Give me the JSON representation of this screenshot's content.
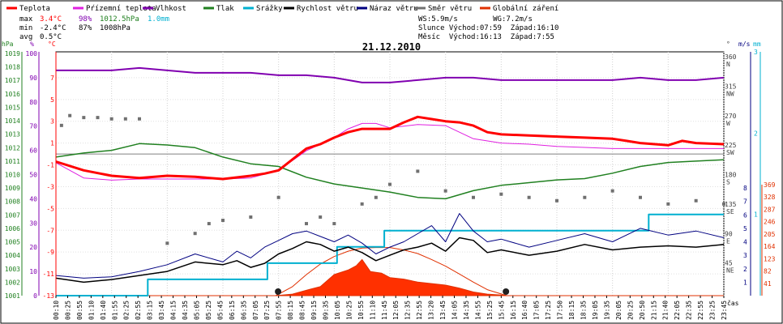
{
  "chart_data": {
    "type": "line",
    "title": "21.12.2010",
    "xlabel": "čas",
    "x_ticks": [
      "00:10",
      "00:25",
      "00:55",
      "01:10",
      "01:40",
      "01:55",
      "02:25",
      "02:55",
      "03:15",
      "03:45",
      "04:15",
      "04:35",
      "05:05",
      "05:25",
      "05:45",
      "06:15",
      "06:35",
      "07:05",
      "07:25",
      "07:55",
      "08:15",
      "08:45",
      "09:15",
      "09:35",
      "10:05",
      "10:25",
      "10:55",
      "11:10",
      "11:45",
      "12:05",
      "12:35",
      "12:55",
      "13:20",
      "13:45",
      "14:05",
      "14:35",
      "14:55",
      "15:25",
      "15:45",
      "16:15",
      "16:40",
      "17:05",
      "17:25",
      "17:50",
      "18:15",
      "18:35",
      "19:05",
      "19:35",
      "20:05",
      "20:25",
      "20:50",
      "21:15",
      "21:40",
      "22:05",
      "22:35",
      "22:55",
      "23:25",
      "23:45"
    ],
    "legend": [
      {
        "name": "Teplota",
        "color": "#ff0000"
      },
      {
        "name": "Pŕízemní teplota",
        "color": "#e020e0"
      },
      {
        "name": "Vlhkost",
        "color": "#8000b0"
      },
      {
        "name": "Tlak",
        "color": "#208020"
      },
      {
        "name": "Srážky",
        "color": "#00b0d0"
      },
      {
        "name": "Rychlost větru",
        "color": "#000000"
      },
      {
        "name": "Náraz větru",
        "color": "#000080"
      },
      {
        "name": "Směr větru",
        "color": "#707070"
      },
      {
        "name": "Globální záření",
        "color": "#e03000"
      }
    ],
    "stats": {
      "max": {
        "label": "max",
        "temp": "3.4°C",
        "hum": "98%",
        "press": "1012.5hPa",
        "rain": "1.0mm"
      },
      "min": {
        "label": "min",
        "temp": "-2.4°C",
        "hum": "87%",
        "press": "1008hPa"
      },
      "avg": {
        "label": "avg",
        "temp": "0.5°C"
      }
    },
    "info": {
      "line1": "WS:5.9m/s        WG:7.2m/s",
      "line2": "Slunce Východ:07:59  Západ:16:10",
      "line3": "Měsíc  Východ:16:13  Západ:7:55"
    },
    "axes": {
      "hPa": {
        "label": "hPa",
        "range": [
          1001,
          1019
        ],
        "ticks": [
          1001,
          1002,
          1003,
          1004,
          1005,
          1006,
          1007,
          1008,
          1009,
          1010,
          1011,
          1012,
          1013,
          1014,
          1015,
          1016,
          1017,
          1018,
          1019
        ]
      },
      "pct": {
        "label": "%",
        "range": [
          0,
          100
        ],
        "ticks": [
          0,
          10,
          20,
          30,
          40,
          50,
          60,
          70,
          80,
          90,
          100
        ]
      },
      "temp": {
        "label": "°C",
        "range": [
          -13,
          9
        ],
        "ticks": [
          -13,
          -11,
          -9,
          -7,
          -5,
          -3,
          -1,
          1,
          3,
          5,
          7
        ]
      },
      "dir": {
        "label": "°",
        "ticks": [
          {
            "v": 360,
            "l": "N"
          },
          {
            "v": 315,
            "l": "NW"
          },
          {
            "v": 270,
            "l": "W"
          },
          {
            "v": 225,
            "l": "SW"
          },
          {
            "v": 180,
            "l": "S"
          },
          {
            "v": 135,
            "l": "SE"
          },
          {
            "v": 90,
            "l": "E"
          },
          {
            "v": 45,
            "l": "NE"
          }
        ]
      },
      "ms": {
        "label": "m/s",
        "ticks": [
          8,
          7,
          6,
          5,
          4,
          3,
          2,
          1
        ]
      },
      "mm": {
        "label": "mm",
        "ticks": [
          3,
          2,
          1
        ]
      },
      "rad": {
        "ticks": [
          369,
          328,
          287,
          246,
          205,
          164,
          123,
          82,
          41
        ]
      }
    },
    "hour_markers": [
      0,
      2,
      4,
      6,
      8,
      10,
      12,
      14,
      16,
      18,
      20,
      22,
      24
    ],
    "series": {
      "temperature": [
        [
          0,
          -0.7
        ],
        [
          1,
          -1.5
        ],
        [
          2,
          -2.0
        ],
        [
          3,
          -2.2
        ],
        [
          4,
          -2.0
        ],
        [
          5,
          -2.1
        ],
        [
          6,
          -2.3
        ],
        [
          7,
          -2.0
        ],
        [
          7.5,
          -1.8
        ],
        [
          8,
          -1.5
        ],
        [
          8.5,
          -0.5
        ],
        [
          9,
          0.5
        ],
        [
          9.5,
          0.9
        ],
        [
          10,
          1.5
        ],
        [
          10.5,
          2.0
        ],
        [
          11,
          2.3
        ],
        [
          11.5,
          2.3
        ],
        [
          12,
          2.3
        ],
        [
          12.5,
          2.9
        ],
        [
          13,
          3.4
        ],
        [
          13.5,
          3.2
        ],
        [
          14,
          3.0
        ],
        [
          14.5,
          2.9
        ],
        [
          15,
          2.6
        ],
        [
          15.5,
          2.0
        ],
        [
          16,
          1.8
        ],
        [
          17,
          1.7
        ],
        [
          18,
          1.6
        ],
        [
          19,
          1.5
        ],
        [
          20,
          1.4
        ],
        [
          20.5,
          1.2
        ],
        [
          21,
          1.0
        ],
        [
          22,
          0.8
        ],
        [
          22.5,
          1.2
        ],
        [
          23,
          1.0
        ],
        [
          24,
          0.9
        ]
      ],
      "ground_temperature": [
        [
          0,
          -0.8
        ],
        [
          1,
          -2.2
        ],
        [
          2,
          -2.4
        ],
        [
          3,
          -2.3
        ],
        [
          4,
          -2.3
        ],
        [
          5,
          -2.3
        ],
        [
          6,
          -2.3
        ],
        [
          7,
          -2.2
        ],
        [
          8,
          -1.5
        ],
        [
          8.5,
          -0.6
        ],
        [
          9,
          0.3
        ],
        [
          10,
          1.5
        ],
        [
          10.5,
          2.3
        ],
        [
          11,
          2.8
        ],
        [
          11.5,
          2.8
        ],
        [
          12,
          2.4
        ],
        [
          13,
          2.7
        ],
        [
          14,
          2.6
        ],
        [
          14.5,
          2.0
        ],
        [
          15,
          1.4
        ],
        [
          16,
          1.0
        ],
        [
          17,
          0.9
        ],
        [
          18,
          0.7
        ],
        [
          19,
          0.6
        ],
        [
          20,
          0.5
        ],
        [
          21,
          0.5
        ],
        [
          22,
          0.5
        ],
        [
          23,
          0.5
        ],
        [
          24,
          0.5
        ]
      ],
      "humidity": [
        [
          0,
          93
        ],
        [
          1,
          93
        ],
        [
          2,
          93
        ],
        [
          3,
          94
        ],
        [
          4,
          93
        ],
        [
          5,
          92
        ],
        [
          6,
          92
        ],
        [
          7,
          92
        ],
        [
          8,
          91
        ],
        [
          9,
          91
        ],
        [
          10,
          90
        ],
        [
          11,
          88
        ],
        [
          11.5,
          88
        ],
        [
          12,
          88
        ],
        [
          13,
          89
        ],
        [
          14,
          90
        ],
        [
          15,
          90
        ],
        [
          16,
          89
        ],
        [
          17,
          89
        ],
        [
          18,
          89
        ],
        [
          19,
          89
        ],
        [
          20,
          89
        ],
        [
          21,
          90
        ],
        [
          22,
          89
        ],
        [
          23,
          89
        ],
        [
          24,
          90
        ]
      ],
      "pressure": [
        [
          0,
          1011.3
        ],
        [
          1,
          1011.6
        ],
        [
          2,
          1011.8
        ],
        [
          3,
          1012.3
        ],
        [
          4,
          1012.2
        ],
        [
          5,
          1012.0
        ],
        [
          6,
          1011.3
        ],
        [
          7,
          1010.8
        ],
        [
          8,
          1010.6
        ],
        [
          9,
          1009.8
        ],
        [
          10,
          1009.3
        ],
        [
          11,
          1009.0
        ],
        [
          12,
          1008.7
        ],
        [
          13,
          1008.3
        ],
        [
          14,
          1008.2
        ],
        [
          15,
          1008.8
        ],
        [
          16,
          1009.2
        ],
        [
          17,
          1009.4
        ],
        [
          18,
          1009.6
        ],
        [
          19,
          1009.7
        ],
        [
          20,
          1010.1
        ],
        [
          21,
          1010.6
        ],
        [
          22,
          1010.9
        ],
        [
          23,
          1011.0
        ],
        [
          24,
          1011.1
        ]
      ],
      "rain": [
        [
          0,
          0
        ],
        [
          3.3,
          0
        ],
        [
          3.3,
          0.2
        ],
        [
          7.6,
          0.2
        ],
        [
          7.6,
          0.4
        ],
        [
          10.1,
          0.4
        ],
        [
          10.1,
          0.6
        ],
        [
          11.8,
          0.6
        ],
        [
          11.8,
          0.8
        ],
        [
          21.3,
          0.8
        ],
        [
          21.3,
          1.0
        ],
        [
          24,
          1.0
        ]
      ],
      "wind_speed": [
        [
          0,
          1.3
        ],
        [
          1,
          1.0
        ],
        [
          2,
          1.2
        ],
        [
          3,
          1.5
        ],
        [
          4,
          1.8
        ],
        [
          5,
          2.5
        ],
        [
          6,
          2.3
        ],
        [
          6.5,
          2.6
        ],
        [
          7,
          2.1
        ],
        [
          7.5,
          2.4
        ],
        [
          8,
          3.1
        ],
        [
          8.5,
          3.5
        ],
        [
          9,
          4.0
        ],
        [
          9.5,
          3.8
        ],
        [
          10,
          3.3
        ],
        [
          10.5,
          3.6
        ],
        [
          11,
          3.2
        ],
        [
          11.5,
          2.6
        ],
        [
          12,
          3.0
        ],
        [
          12.5,
          3.4
        ],
        [
          13,
          3.6
        ],
        [
          13.5,
          3.9
        ],
        [
          14,
          3.3
        ],
        [
          14.5,
          4.3
        ],
        [
          15,
          4.1
        ],
        [
          15.5,
          3.2
        ],
        [
          16,
          3.4
        ],
        [
          17,
          3.0
        ],
        [
          18,
          3.3
        ],
        [
          19,
          3.8
        ],
        [
          20,
          3.4
        ],
        [
          21,
          3.6
        ],
        [
          22,
          3.7
        ],
        [
          23,
          3.6
        ],
        [
          24,
          3.8
        ]
      ],
      "wind_gust": [
        [
          0,
          1.5
        ],
        [
          1,
          1.3
        ],
        [
          2,
          1.4
        ],
        [
          3,
          1.8
        ],
        [
          4,
          2.3
        ],
        [
          5,
          3.1
        ],
        [
          6,
          2.5
        ],
        [
          6.5,
          3.3
        ],
        [
          7,
          2.8
        ],
        [
          7.5,
          3.6
        ],
        [
          8,
          4.1
        ],
        [
          8.5,
          4.6
        ],
        [
          9,
          4.8
        ],
        [
          9.5,
          4.4
        ],
        [
          10,
          4.0
        ],
        [
          10.5,
          4.5
        ],
        [
          11,
          3.9
        ],
        [
          11.5,
          3.1
        ],
        [
          12,
          3.6
        ],
        [
          12.5,
          4.0
        ],
        [
          13,
          4.6
        ],
        [
          13.5,
          5.2
        ],
        [
          14,
          4.0
        ],
        [
          14.5,
          6.1
        ],
        [
          15,
          4.8
        ],
        [
          15.5,
          4.0
        ],
        [
          16,
          4.2
        ],
        [
          17,
          3.6
        ],
        [
          18,
          4.1
        ],
        [
          19,
          4.6
        ],
        [
          20,
          4.0
        ],
        [
          21,
          5.0
        ],
        [
          22,
          4.5
        ],
        [
          23,
          4.8
        ],
        [
          24,
          4.3
        ]
      ],
      "wind_direction": [
        [
          0.2,
          260
        ],
        [
          0.5,
          275
        ],
        [
          1,
          272
        ],
        [
          1.5,
          272
        ],
        [
          2,
          270
        ],
        [
          2.5,
          270
        ],
        [
          3,
          270
        ],
        [
          4,
          80
        ],
        [
          5,
          95
        ],
        [
          5.5,
          110
        ],
        [
          6,
          115
        ],
        [
          7,
          120
        ],
        [
          8,
          150
        ],
        [
          9,
          110
        ],
        [
          9.5,
          120
        ],
        [
          10,
          110
        ],
        [
          11,
          140
        ],
        [
          11.5,
          150
        ],
        [
          12,
          170
        ],
        [
          13,
          190
        ],
        [
          14,
          160
        ],
        [
          15,
          150
        ],
        [
          16,
          155
        ],
        [
          17,
          150
        ],
        [
          18,
          145
        ],
        [
          19,
          150
        ],
        [
          20,
          160
        ],
        [
          21,
          150
        ],
        [
          22,
          140
        ],
        [
          23,
          145
        ],
        [
          24,
          140
        ]
      ],
      "global_radiation": [
        [
          0,
          0
        ],
        [
          7.9,
          0
        ],
        [
          8.5,
          5
        ],
        [
          9,
          18
        ],
        [
          9.5,
          30
        ],
        [
          10,
          70
        ],
        [
          10.5,
          85
        ],
        [
          10.8,
          100
        ],
        [
          11,
          120
        ],
        [
          11.3,
          80
        ],
        [
          11.7,
          75
        ],
        [
          12,
          60
        ],
        [
          12.5,
          55
        ],
        [
          13,
          45
        ],
        [
          13.5,
          40
        ],
        [
          14,
          35
        ],
        [
          14.5,
          25
        ],
        [
          15,
          12
        ],
        [
          15.5,
          5
        ],
        [
          16,
          2
        ],
        [
          16.2,
          0
        ],
        [
          24,
          0
        ]
      ],
      "theoretical_radiation": [
        [
          7.9,
          0
        ],
        [
          8.5,
          30
        ],
        [
          9,
          70
        ],
        [
          9.5,
          105
        ],
        [
          10,
          130
        ],
        [
          10.5,
          148
        ],
        [
          11,
          158
        ],
        [
          11.5,
          160
        ],
        [
          12,
          160
        ],
        [
          12.5,
          152
        ],
        [
          13,
          140
        ],
        [
          13.5,
          120
        ],
        [
          14,
          98
        ],
        [
          14.5,
          72
        ],
        [
          15,
          45
        ],
        [
          15.5,
          20
        ],
        [
          16.2,
          0
        ]
      ]
    }
  }
}
